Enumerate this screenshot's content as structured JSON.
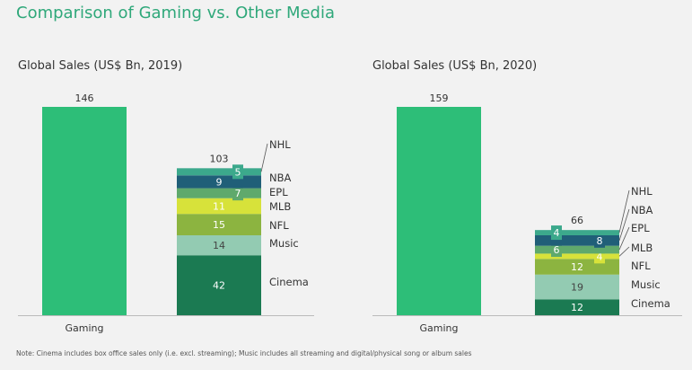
{
  "title": "Comparison of Gaming vs. Other Media",
  "note": "Note: Cinema includes box office sales only (i.e. excl. streaming); Music includes all streaming and digital/physical song or album sales",
  "colors": {
    "Gaming": "#2dbe78",
    "Cinema": "#1b7a52",
    "Music": "#93cbb2",
    "NFL": "#8cb440",
    "MLB": "#d7e23a",
    "EPL": "#5fa96c",
    "NBA": "#205f78",
    "NHL": "#3ca98c"
  },
  "chart_data": [
    {
      "type": "bar",
      "title": "Global Sales (US$ Bn, 2019)",
      "categories": [
        "Gaming",
        ""
      ],
      "gaming": 146,
      "other_total": 103,
      "stack": [
        {
          "name": "Cinema",
          "value": 42
        },
        {
          "name": "Music",
          "value": 14
        },
        {
          "name": "NFL",
          "value": 15
        },
        {
          "name": "MLB",
          "value": 11
        },
        {
          "name": "EPL",
          "value": 7
        },
        {
          "name": "NBA",
          "value": 9
        },
        {
          "name": "NHL",
          "value": 5
        }
      ]
    },
    {
      "type": "bar",
      "title": "Global Sales (US$ Bn, 2020)",
      "categories": [
        "Gaming",
        ""
      ],
      "gaming": 159,
      "other_total": 66,
      "stack": [
        {
          "name": "Cinema",
          "value": 12
        },
        {
          "name": "Music",
          "value": 19
        },
        {
          "name": "NFL",
          "value": 12
        },
        {
          "name": "MLB",
          "value": 4
        },
        {
          "name": "EPL",
          "value": 6
        },
        {
          "name": "NBA",
          "value": 8
        },
        {
          "name": "NHL",
          "value": 4
        }
      ]
    }
  ]
}
